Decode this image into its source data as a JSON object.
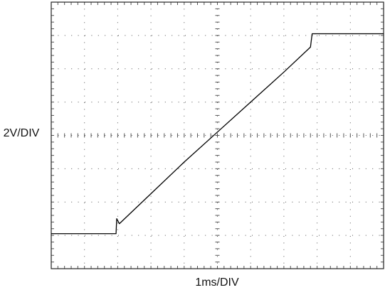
{
  "chart_data": {
    "type": "line",
    "x_label": "1ms/DIV",
    "y_label": "2V/DIV",
    "x": [
      0,
      1.95,
      1.97,
      2.05,
      3,
      4,
      5,
      6,
      7,
      7.8,
      7.85,
      10
    ],
    "series": [
      {
        "color": "#000000",
        "values": [
          2.1,
          2.1,
          3.0,
          2.7,
          4.5,
          6.4,
          8.2,
          10.0,
          11.8,
          13.3,
          14.1,
          14.1
        ]
      }
    ],
    "xlim": [
      0,
      10
    ],
    "ylim": [
      0,
      16
    ],
    "xticks": [
      0,
      1,
      2,
      3,
      4,
      5,
      6,
      7,
      8,
      9,
      10
    ],
    "yticks": [
      0,
      2,
      4,
      6,
      8,
      10,
      12,
      14,
      16
    ],
    "grid": true
  }
}
